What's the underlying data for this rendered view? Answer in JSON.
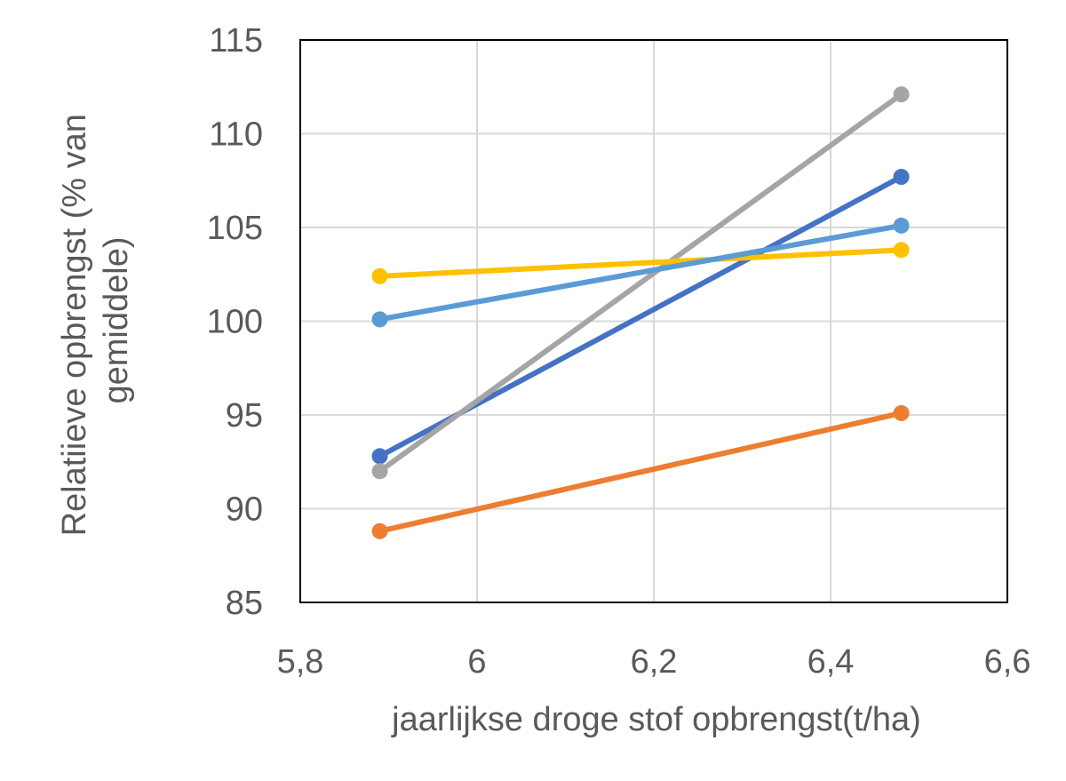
{
  "chart_data": {
    "type": "line",
    "title": "",
    "xlabel": "jaarlijkse droge stof opbrengst(t/ha)",
    "ylabel_lines": [
      "Relatiieve opbrengst (% van",
      "gemiddele)"
    ],
    "xlim": [
      5.8,
      6.6
    ],
    "ylim": [
      85,
      115
    ],
    "x_ticks": [
      5.8,
      6.0,
      6.2,
      6.4,
      6.6
    ],
    "x_tick_labels": [
      "5,8",
      "6",
      "6,2",
      "6,4",
      "6,6"
    ],
    "y_ticks": [
      85,
      90,
      95,
      100,
      105,
      110,
      115
    ],
    "y_tick_labels": [
      "85",
      "90",
      "95",
      "100",
      "105",
      "110",
      "115"
    ],
    "grid": true,
    "legend": "none",
    "series": [
      {
        "color": "#4472C4",
        "x": [
          5.89,
          6.48
        ],
        "y": [
          92.8,
          107.7
        ]
      },
      {
        "color": "#ED7D31",
        "x": [
          5.89,
          6.48
        ],
        "y": [
          88.8,
          95.1
        ]
      },
      {
        "color": "#A5A5A5",
        "x": [
          5.89,
          6.48
        ],
        "y": [
          92.0,
          112.1
        ]
      },
      {
        "color": "#FFC000",
        "x": [
          5.89,
          6.48
        ],
        "y": [
          102.4,
          103.8
        ]
      },
      {
        "color": "#5B9BD5",
        "x": [
          5.89,
          6.48
        ],
        "y": [
          100.1,
          105.1
        ]
      }
    ]
  }
}
